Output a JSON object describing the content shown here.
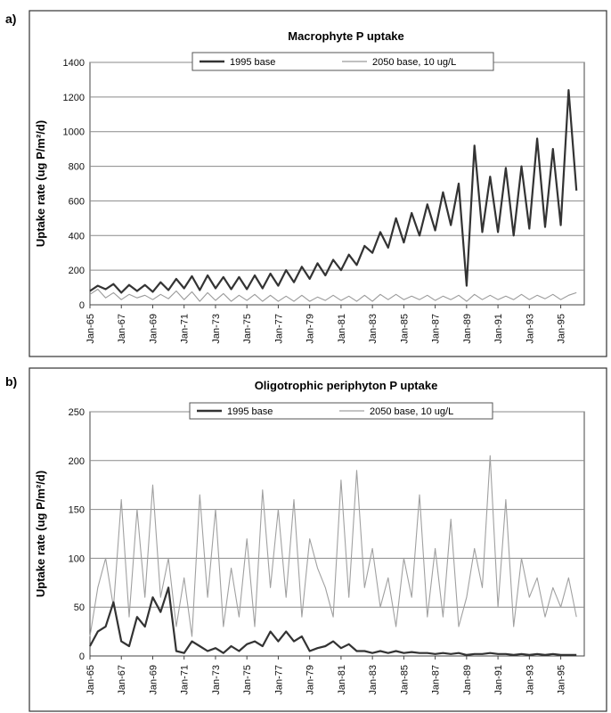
{
  "chart_data": [
    {
      "type": "line",
      "panel_label": "a)",
      "title": "Macrophyte P uptake",
      "ylabel": "Uptake rate (ug P/m²/d)",
      "xlabel": "",
      "ylim": [
        0,
        1400
      ],
      "yticks": [
        0,
        200,
        400,
        600,
        800,
        1000,
        1200,
        1400
      ],
      "xlim": [
        "1965-01",
        "1996-07"
      ],
      "xtick_labels": [
        "Jan-65",
        "Jan-67",
        "Jan-69",
        "Jan-71",
        "Jan-73",
        "Jan-75",
        "Jan-77",
        "Jan-79",
        "Jan-81",
        "Jan-83",
        "Jan-85",
        "Jan-87",
        "Jan-89",
        "Jan-91",
        "Jan-93",
        "Jan-95"
      ],
      "grid": "horizontal",
      "legend_position": "top-center",
      "series": [
        {
          "name": "1995 base",
          "color": "#333333",
          "style": "thick-solid",
          "x_start": "1965-01",
          "step_months": 6,
          "values": [
            80,
            110,
            90,
            120,
            70,
            115,
            80,
            115,
            75,
            130,
            85,
            150,
            95,
            165,
            85,
            170,
            95,
            160,
            90,
            160,
            90,
            170,
            95,
            180,
            110,
            200,
            130,
            220,
            150,
            240,
            170,
            260,
            200,
            290,
            230,
            340,
            300,
            420,
            330,
            500,
            360,
            530,
            400,
            580,
            430,
            650,
            460,
            700,
            110,
            920,
            420,
            740,
            420,
            790,
            400,
            800,
            440,
            960,
            450,
            900,
            460,
            1240,
            660
          ]
        },
        {
          "name": "2050 base, 10 ug/L",
          "color": "#9a9a9a",
          "style": "thin-solid",
          "x_start": "1965-01",
          "step_months": 6,
          "values": [
            60,
            90,
            40,
            70,
            30,
            60,
            40,
            55,
            30,
            60,
            35,
            80,
            30,
            75,
            20,
            70,
            25,
            65,
            20,
            55,
            25,
            60,
            20,
            55,
            20,
            50,
            20,
            55,
            20,
            45,
            25,
            55,
            25,
            50,
            20,
            55,
            20,
            60,
            30,
            60,
            30,
            50,
            30,
            55,
            25,
            50,
            30,
            55,
            20,
            60,
            30,
            55,
            30,
            50,
            30,
            60,
            30,
            55,
            35,
            60,
            30,
            55,
            70
          ]
        }
      ]
    },
    {
      "type": "line",
      "panel_label": "b)",
      "title": "Oligotrophic periphyton P uptake",
      "ylabel": "Uptake rate (ug P/m²/d)",
      "xlabel": "",
      "ylim": [
        0,
        250
      ],
      "yticks": [
        0,
        50,
        100,
        150,
        200,
        250
      ],
      "xlim": [
        "1965-01",
        "1996-07"
      ],
      "xtick_labels": [
        "Jan-65",
        "Jan-67",
        "Jan-69",
        "Jan-71",
        "Jan-73",
        "Jan-75",
        "Jan-77",
        "Jan-79",
        "Jan-81",
        "Jan-83",
        "Jan-85",
        "Jan-87",
        "Jan-89",
        "Jan-91",
        "Jan-93",
        "Jan-95"
      ],
      "grid": "horizontal",
      "legend_position": "top-center",
      "series": [
        {
          "name": "1995 base",
          "color": "#333333",
          "style": "thick-solid",
          "x_start": "1965-01",
          "step_months": 6,
          "values": [
            10,
            25,
            30,
            55,
            15,
            10,
            40,
            30,
            60,
            45,
            70,
            5,
            3,
            15,
            10,
            5,
            8,
            3,
            10,
            5,
            12,
            15,
            10,
            25,
            15,
            25,
            15,
            20,
            5,
            8,
            10,
            15,
            8,
            12,
            5,
            5,
            3,
            5,
            3,
            5,
            3,
            4,
            3,
            3,
            2,
            3,
            2,
            3,
            1,
            2,
            2,
            3,
            2,
            2,
            1,
            2,
            1,
            2,
            1,
            2,
            1,
            1,
            1
          ]
        },
        {
          "name": "2050 base, 10 ug/L",
          "color": "#a0a0a0",
          "style": "thin-solid",
          "x_start": "1965-01",
          "step_months": 6,
          "values": [
            20,
            70,
            100,
            50,
            160,
            40,
            150,
            60,
            175,
            60,
            100,
            30,
            80,
            20,
            165,
            60,
            150,
            30,
            90,
            40,
            120,
            30,
            170,
            70,
            150,
            60,
            160,
            40,
            120,
            90,
            70,
            40,
            180,
            60,
            190,
            70,
            110,
            50,
            80,
            30,
            100,
            60,
            165,
            40,
            110,
            40,
            140,
            30,
            60,
            110,
            70,
            205,
            50,
            160,
            30,
            100,
            60,
            80,
            40,
            70,
            50,
            80,
            40
          ]
        }
      ]
    }
  ]
}
